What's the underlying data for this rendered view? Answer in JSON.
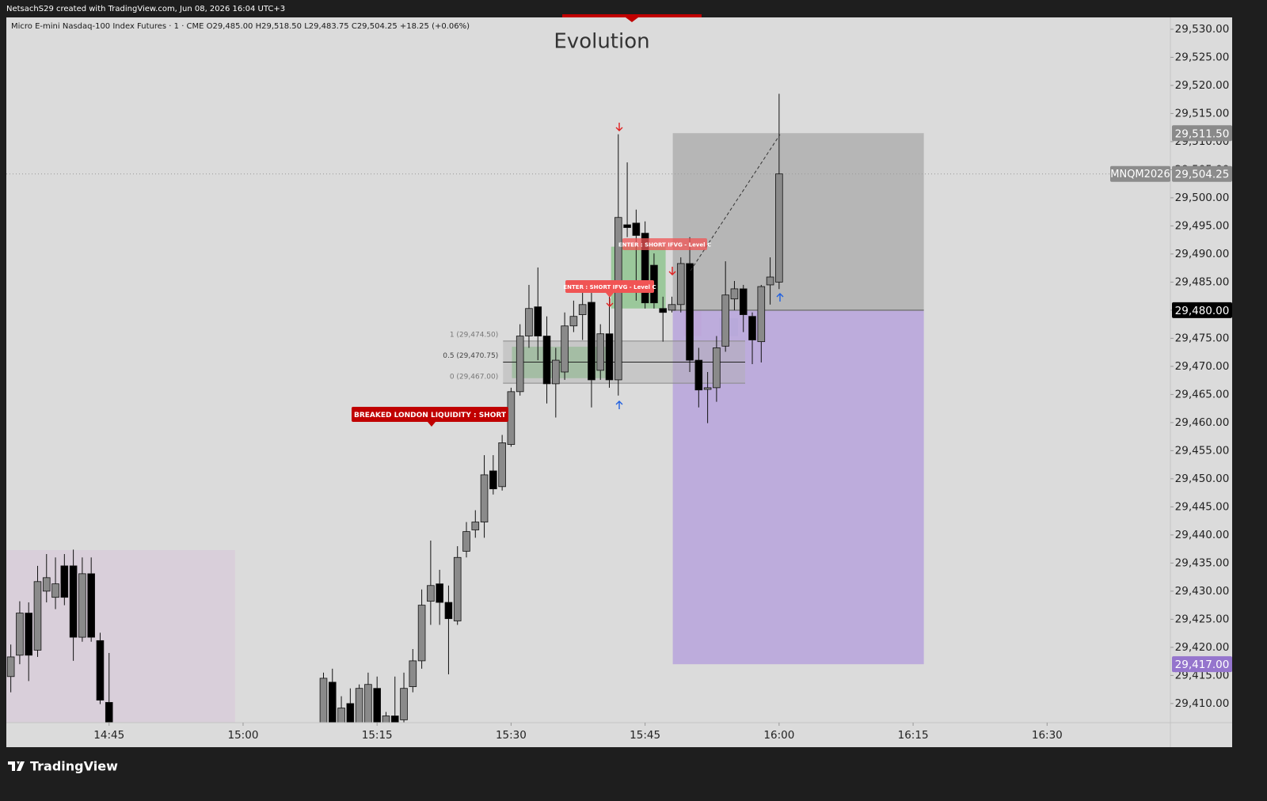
{
  "header": "NetsachS29 created with TradingView.com, Jun 08, 2026 16:04 UTC+3",
  "footer": "TradingView",
  "chart_data": {
    "type": "candlestick",
    "title": "Evolution",
    "subtitle": "Micro E-mini Nasdaq-100 Index Futures · 1 · CME  O29,485.00  H29,518.50  L29,483.75  C29,504.25  +18.25 (+0.06%)",
    "x": [
      874,
      875,
      876,
      877,
      878,
      879,
      880,
      881,
      882,
      883,
      884,
      885,
      909,
      910,
      911,
      912,
      913,
      914,
      915,
      916,
      917,
      918,
      919,
      920,
      921,
      922,
      923,
      924,
      925,
      926,
      927,
      928,
      929,
      930,
      931,
      932,
      933,
      934,
      935,
      936,
      937,
      938,
      939,
      940,
      941,
      942,
      943,
      944,
      945,
      946,
      947,
      948,
      949,
      950,
      951,
      952,
      953,
      954,
      955,
      956,
      957,
      958,
      959,
      960
    ],
    "open": [
      29414.8,
      29418.6,
      29426.1,
      29419.5,
      29430,
      29428.9,
      29434.5,
      29434.5,
      29421.8,
      29433.1,
      29421.2,
      29410.2,
      29404,
      29413.8,
      29404,
      29410,
      29404.5,
      29404,
      29412.7,
      29404.5,
      29407.8,
      29407.1,
      29413,
      29417.6,
      29428.2,
      29431.3,
      29428,
      29424.7,
      29437.1,
      29440.9,
      29442.3,
      29451.4,
      29448.6,
      29456.1,
      29465.5,
      29475.4,
      29480.6,
      29475.4,
      29466.9,
      29469,
      29477.2,
      29479.2,
      29481.4,
      29469.3,
      29475.8,
      29467.6,
      29495.2,
      29495.5,
      29493.7,
      29488,
      29480.3,
      29480,
      29481,
      29488.3,
      29471.1,
      29465.9,
      29466.2,
      29473.6,
      29482,
      29483.8,
      29478.9,
      29474.4,
      29484.5,
      29485
    ],
    "high": [
      29420.5,
      29428.2,
      29428,
      29434.5,
      29436.6,
      29436,
      29436.6,
      29437.4,
      29436,
      29436,
      29422.6,
      29419,
      29415.5,
      29416.2,
      29411.3,
      29412.7,
      29413.4,
      29415.5,
      29414.8,
      29408.5,
      29414.8,
      29415.5,
      29419.7,
      29430.3,
      29439,
      29433.8,
      29431,
      29438,
      29442.3,
      29444.4,
      29454.2,
      29454.2,
      29457.8,
      29466.2,
      29477.5,
      29484.5,
      29487.6,
      29478.9,
      29473.3,
      29479.6,
      29481.7,
      29483.8,
      29483.1,
      29477.5,
      29482.4,
      29511.3,
      29506.3,
      29497.9,
      29495.8,
      29490.1,
      29482.4,
      29482.4,
      29489.4,
      29493,
      29473.3,
      29469,
      29475.4,
      29488.7,
      29485.2,
      29484.5,
      29479.6,
      29484.5,
      29489.4,
      29518.5
    ],
    "low": [
      29412,
      29417,
      29414,
      29418.3,
      29428,
      29426.8,
      29427.5,
      29417.6,
      29421,
      29421,
      29409.9,
      29404,
      29403,
      29403,
      29403,
      29403,
      29403,
      29403,
      29403,
      29403,
      29403,
      29406.4,
      29412,
      29416.2,
      29424,
      29424,
      29415.2,
      29424,
      29436,
      29439.5,
      29439.5,
      29447.2,
      29447.9,
      29455.7,
      29464.8,
      29473.3,
      29471.1,
      29463.4,
      29460.9,
      29467.6,
      29476.1,
      29474.7,
      29462.7,
      29467.6,
      29466.2,
      29464.8,
      29493,
      29481.7,
      29480.3,
      29480.3,
      29474.4,
      29479.6,
      29479.6,
      29469,
      29462.7,
      29459.9,
      29463.7,
      29472.6,
      29480,
      29476.1,
      29470.4,
      29470.7,
      29481,
      29483.75
    ],
    "close": [
      29418.3,
      29426.1,
      29418.6,
      29431.7,
      29432.4,
      29431.3,
      29428.9,
      29421.8,
      29433.1,
      29421.8,
      29410.6,
      29405,
      29414.5,
      29404,
      29409.2,
      29404,
      29412.7,
      29413.4,
      29404,
      29407.8,
      29406.5,
      29412.7,
      29417.6,
      29427.5,
      29431,
      29428,
      29425.1,
      29436,
      29440.6,
      29442.3,
      29450.7,
      29448.2,
      29456.4,
      29465.5,
      29475.4,
      29480.3,
      29475.4,
      29466.9,
      29471.1,
      29477.2,
      29478.9,
      29481,
      29467.6,
      29475.8,
      29467.6,
      29496.5,
      29494.7,
      29493.3,
      29481.3,
      29481.3,
      29479.6,
      29481,
      29488.3,
      29471.1,
      29465.8,
      29466.2,
      29473.3,
      29482.7,
      29483.8,
      29479.2,
      29474.7,
      29484.2,
      29485.9,
      29504.25
    ],
    "up_color": "#8a8a8a",
    "down_color": "#000000",
    "xlim": [
      873.5,
      1003.8
    ],
    "xticks": [
      {
        "value": 885,
        "label": "14:45"
      },
      {
        "value": 900,
        "label": "15:00"
      },
      {
        "value": 915,
        "label": "15:15"
      },
      {
        "value": 930,
        "label": "15:30"
      },
      {
        "value": 945,
        "label": "15:45"
      },
      {
        "value": 960,
        "label": "16:00"
      },
      {
        "value": 975,
        "label": "16:15"
      },
      {
        "value": 990,
        "label": "16:30"
      }
    ],
    "ylim": [
      29406.6,
      29532.1
    ],
    "yticks": [
      {
        "value": 29410,
        "label": "29,410.00"
      },
      {
        "value": 29415,
        "label": "29,415.00"
      },
      {
        "value": 29420,
        "label": "29,420.00"
      },
      {
        "value": 29425,
        "label": "29,425.00"
      },
      {
        "value": 29430,
        "label": "29,430.00"
      },
      {
        "value": 29435,
        "label": "29,435.00"
      },
      {
        "value": 29440,
        "label": "29,440.00"
      },
      {
        "value": 29445,
        "label": "29,445.00"
      },
      {
        "value": 29450,
        "label": "29,450.00"
      },
      {
        "value": 29455,
        "label": "29,455.00"
      },
      {
        "value": 29460,
        "label": "29,460.00"
      },
      {
        "value": 29465,
        "label": "29,465.00"
      },
      {
        "value": 29470,
        "label": "29,470.00"
      },
      {
        "value": 29475,
        "label": "29,475.00"
      },
      {
        "value": 29480,
        "label": "29,480.00"
      },
      {
        "value": 29485,
        "label": "29,485.00"
      },
      {
        "value": 29490,
        "label": "29,490.00"
      },
      {
        "value": 29495,
        "label": "29,495.00"
      },
      {
        "value": 29500,
        "label": "29,500.00"
      },
      {
        "value": 29505,
        "label": "29,505.00"
      },
      {
        "value": 29510,
        "label": "29,510.00"
      },
      {
        "value": 29515,
        "label": "29,515.00"
      },
      {
        "value": 29520,
        "label": "29,520.00"
      },
      {
        "value": 29525,
        "label": "29,525.00"
      },
      {
        "value": 29530,
        "label": "29,530.00"
      }
    ],
    "grid": false,
    "symbol_label": "MNQM2026",
    "last_price": {
      "value": 29504.25,
      "label": "29,504.25"
    },
    "position": {
      "start": 948.1,
      "end": 976.2,
      "entry": {
        "value": 29480,
        "label": "29,480.00"
      },
      "stop": {
        "value": 29511.5,
        "label": "29,511.50"
      },
      "target": {
        "value": 29417,
        "label": "29,417.00"
      }
    },
    "fib": {
      "start": 929.1,
      "end": 956.2,
      "levels": [
        {
          "value": 29474.5,
          "label": "1 (29,474.50)"
        },
        {
          "value": 29470.75,
          "label": "0.5 (29,470.75)"
        },
        {
          "value": 29467,
          "label": "0 (29,467.00)"
        }
      ]
    },
    "zones": [
      {
        "start": 873.5,
        "end": 899.1,
        "low": 29406.6,
        "high": 29437.3,
        "color": "#d8cdd9"
      },
      {
        "start": 930.1,
        "end": 941.2,
        "low": 29467.9,
        "high": 29473.5,
        "color": "#8fc48f"
      },
      {
        "start": 941.2,
        "end": 947.3,
        "low": 29480.3,
        "high": 29491.3,
        "color": "#8fc48f"
      },
      {
        "start": 949.3,
        "end": 951.3,
        "low": 29475.4,
        "high": 29480,
        "color": "#d9a2c4"
      },
      {
        "start": 953.3,
        "end": 955.4,
        "low": 29475.4,
        "high": 29478.6,
        "color": "#a9bec6"
      }
    ],
    "annotations": [
      "BREAKED LONDON LIQUIDITY : SHORT",
      "ENTER : SHORT IFVG - Level C",
      "ENTER : SHORT IFVG - Level C"
    ]
  }
}
